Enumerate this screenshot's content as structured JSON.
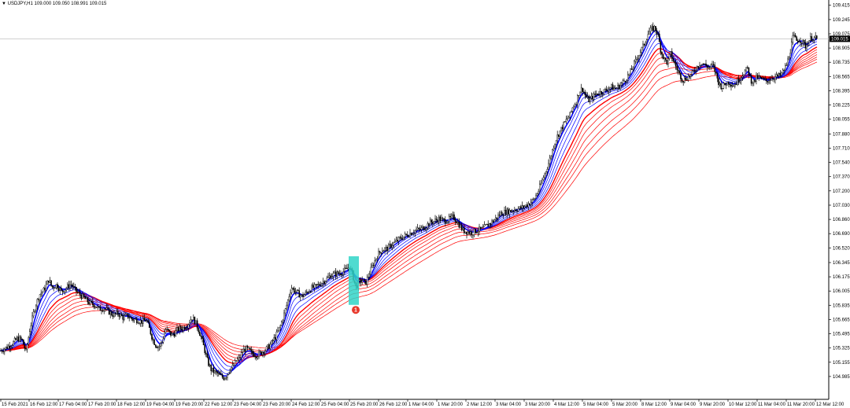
{
  "chart_data": {
    "type": "candlestick",
    "symbol_header": {
      "symbol": "USDJPY,H1",
      "ohlc": "109.000 109.050 108.991 109.015"
    },
    "current_price_label": "109.015",
    "current_price": 109.015,
    "ylim": [
      104.9,
      109.45
    ],
    "y_ticks": [
      "109.415",
      "109.245",
      "109.075",
      "108.905",
      "108.735",
      "108.565",
      "108.395",
      "108.225",
      "108.055",
      "107.880",
      "107.710",
      "107.540",
      "107.370",
      "107.200",
      "107.030",
      "106.860",
      "106.690",
      "106.520",
      "106.345",
      "106.175",
      "106.005",
      "105.835",
      "105.665",
      "105.495",
      "105.325",
      "105.155",
      "104.985"
    ],
    "x_ticks": [
      "15 Feb 2021",
      "16 Feb 12:00",
      "17 Feb 04:00",
      "17 Feb 20:00",
      "18 Feb 12:00",
      "19 Feb 04:00",
      "19 Feb 20:00",
      "22 Feb 12:00",
      "23 Feb 04:00",
      "23 Feb 20:00",
      "24 Feb 12:00",
      "25 Feb 04:00",
      "25 Feb 20:00",
      "26 Feb 12:00",
      "1 Mar 04:00",
      "1 Mar 20:00",
      "2 Mar 12:00",
      "3 Mar 04:00",
      "3 Mar 20:00",
      "4 Mar 12:00",
      "5 Mar 04:00",
      "5 Mar 20:00",
      "8 Mar 12:00",
      "9 Mar 04:00",
      "9 Mar 20:00",
      "10 Mar 12:00",
      "11 Mar 04:00",
      "11 Mar 20:00",
      "12 Mar 12:00"
    ],
    "price_path": [
      [
        0,
        105.29
      ],
      [
        8,
        105.33
      ],
      [
        16,
        105.38
      ],
      [
        22,
        105.44
      ],
      [
        28,
        105.42
      ],
      [
        33,
        105.28
      ],
      [
        38,
        105.55
      ],
      [
        44,
        105.8
      ],
      [
        50,
        105.96
      ],
      [
        56,
        106.02
      ],
      [
        62,
        106.14
      ],
      [
        66,
        106.05
      ],
      [
        72,
        106.08
      ],
      [
        78,
        106.0
      ],
      [
        84,
        106.04
      ],
      [
        90,
        106.09
      ],
      [
        96,
        106.01
      ],
      [
        102,
        105.96
      ],
      [
        108,
        105.91
      ],
      [
        114,
        105.86
      ],
      [
        120,
        105.84
      ],
      [
        126,
        105.79
      ],
      [
        132,
        105.8
      ],
      [
        138,
        105.76
      ],
      [
        144,
        105.72
      ],
      [
        150,
        105.74
      ],
      [
        156,
        105.69
      ],
      [
        162,
        105.71
      ],
      [
        168,
        105.67
      ],
      [
        174,
        105.66
      ],
      [
        180,
        105.64
      ],
      [
        186,
        105.66
      ],
      [
        190,
        105.55
      ],
      [
        194,
        105.43
      ],
      [
        198,
        105.36
      ],
      [
        202,
        105.34
      ],
      [
        206,
        105.4
      ],
      [
        210,
        105.55
      ],
      [
        214,
        105.52
      ],
      [
        218,
        105.48
      ],
      [
        222,
        105.5
      ],
      [
        226,
        105.55
      ],
      [
        232,
        105.56
      ],
      [
        238,
        105.6
      ],
      [
        244,
        105.69
      ],
      [
        248,
        105.64
      ],
      [
        252,
        105.55
      ],
      [
        256,
        105.44
      ],
      [
        260,
        105.3
      ],
      [
        264,
        105.16
      ],
      [
        268,
        105.07
      ],
      [
        272,
        105.04
      ],
      [
        276,
        105.02
      ],
      [
        280,
        104.99
      ],
      [
        284,
        104.97
      ],
      [
        288,
        105.0
      ],
      [
        292,
        105.08
      ],
      [
        296,
        105.1
      ],
      [
        300,
        105.17
      ],
      [
        304,
        105.2
      ],
      [
        308,
        105.28
      ],
      [
        312,
        105.32
      ],
      [
        316,
        105.3
      ],
      [
        320,
        105.26
      ],
      [
        326,
        105.24
      ],
      [
        332,
        105.27
      ],
      [
        338,
        105.31
      ],
      [
        344,
        105.37
      ],
      [
        350,
        105.46
      ],
      [
        356,
        105.58
      ],
      [
        362,
        105.76
      ],
      [
        366,
        105.9
      ],
      [
        370,
        106.05
      ],
      [
        374,
        106.01
      ],
      [
        378,
        105.98
      ],
      [
        384,
        105.94
      ],
      [
        390,
        105.99
      ],
      [
        396,
        106.04
      ],
      [
        402,
        106.06
      ],
      [
        408,
        106.1
      ],
      [
        414,
        106.14
      ],
      [
        420,
        106.19
      ],
      [
        426,
        106.21
      ],
      [
        432,
        106.22
      ],
      [
        436,
        106.24
      ],
      [
        440,
        106.26
      ],
      [
        444,
        106.3
      ],
      [
        448,
        106.2
      ],
      [
        452,
        106.05
      ],
      [
        456,
        106.1
      ],
      [
        460,
        106.14
      ],
      [
        464,
        106.09
      ],
      [
        468,
        106.18
      ],
      [
        474,
        106.32
      ],
      [
        480,
        106.44
      ],
      [
        486,
        106.5
      ],
      [
        492,
        106.51
      ],
      [
        498,
        106.56
      ],
      [
        504,
        106.6
      ],
      [
        510,
        106.64
      ],
      [
        516,
        106.67
      ],
      [
        522,
        106.7
      ],
      [
        528,
        106.73
      ],
      [
        534,
        106.74
      ],
      [
        540,
        106.77
      ],
      [
        546,
        106.82
      ],
      [
        552,
        106.84
      ],
      [
        558,
        106.87
      ],
      [
        564,
        106.84
      ],
      [
        570,
        106.86
      ],
      [
        576,
        106.89
      ],
      [
        582,
        106.82
      ],
      [
        588,
        106.73
      ],
      [
        594,
        106.71
      ],
      [
        600,
        106.7
      ],
      [
        606,
        106.73
      ],
      [
        612,
        106.74
      ],
      [
        618,
        106.78
      ],
      [
        624,
        106.82
      ],
      [
        630,
        106.87
      ],
      [
        636,
        106.93
      ],
      [
        642,
        106.95
      ],
      [
        648,
        106.96
      ],
      [
        654,
        106.98
      ],
      [
        660,
        106.99
      ],
      [
        666,
        107.01
      ],
      [
        672,
        107.05
      ],
      [
        678,
        107.09
      ],
      [
        684,
        107.2
      ],
      [
        690,
        107.35
      ],
      [
        696,
        107.5
      ],
      [
        700,
        107.62
      ],
      [
        704,
        107.76
      ],
      [
        708,
        107.85
      ],
      [
        712,
        107.92
      ],
      [
        716,
        107.99
      ],
      [
        720,
        108.05
      ],
      [
        724,
        108.1
      ],
      [
        728,
        108.21
      ],
      [
        732,
        108.26
      ],
      [
        736,
        108.39
      ],
      [
        740,
        108.42
      ],
      [
        744,
        108.33
      ],
      [
        748,
        108.28
      ],
      [
        752,
        108.31
      ],
      [
        758,
        108.36
      ],
      [
        764,
        108.38
      ],
      [
        770,
        108.4
      ],
      [
        776,
        108.44
      ],
      [
        782,
        108.42
      ],
      [
        788,
        108.46
      ],
      [
        794,
        108.52
      ],
      [
        800,
        108.6
      ],
      [
        806,
        108.72
      ],
      [
        812,
        108.83
      ],
      [
        818,
        108.94
      ],
      [
        824,
        109.09
      ],
      [
        828,
        109.13
      ],
      [
        832,
        109.15
      ],
      [
        836,
        109.06
      ],
      [
        840,
        108.86
      ],
      [
        844,
        108.77
      ],
      [
        848,
        108.73
      ],
      [
        852,
        108.84
      ],
      [
        856,
        108.74
      ],
      [
        860,
        108.66
      ],
      [
        864,
        108.58
      ],
      [
        868,
        108.52
      ],
      [
        872,
        108.55
      ],
      [
        878,
        108.58
      ],
      [
        884,
        108.66
      ],
      [
        890,
        108.73
      ],
      [
        896,
        108.7
      ],
      [
        902,
        108.67
      ],
      [
        906,
        108.7
      ],
      [
        910,
        108.58
      ],
      [
        914,
        108.47
      ],
      [
        918,
        108.44
      ],
      [
        922,
        108.48
      ],
      [
        926,
        108.5
      ],
      [
        932,
        108.46
      ],
      [
        938,
        108.52
      ],
      [
        944,
        108.6
      ],
      [
        950,
        108.66
      ],
      [
        954,
        108.52
      ],
      [
        958,
        108.5
      ],
      [
        962,
        108.56
      ],
      [
        968,
        108.53
      ],
      [
        974,
        108.51
      ],
      [
        980,
        108.55
      ],
      [
        986,
        108.56
      ],
      [
        992,
        108.58
      ],
      [
        996,
        108.64
      ],
      [
        1000,
        108.72
      ],
      [
        1004,
        108.87
      ],
      [
        1008,
        109.05
      ],
      [
        1012,
        108.99
      ],
      [
        1016,
        109.01
      ],
      [
        1020,
        108.97
      ],
      [
        1024,
        108.92
      ],
      [
        1028,
        109.0
      ],
      [
        1032,
        109.03
      ],
      [
        1036,
        109.02
      ],
      [
        1038,
        109.015
      ]
    ],
    "ema_fast_offsets": [
      0,
      0.04,
      0.08,
      0.12
    ],
    "ema_slow_offsets": [
      0.16,
      0.2,
      0.24,
      0.28,
      0.32,
      0.36,
      0.4
    ],
    "colors": {
      "candles": "#000000",
      "fast_ma": "#0000ff",
      "slow_ma": "#ff0000",
      "highlight": "#30d5c8",
      "badge": "#e8382b",
      "price_line": "#c0c0c0",
      "price_label_bg": "#000000",
      "axis": "#000000"
    },
    "annotations": [
      {
        "type": "highlight",
        "x_at": "25 Feb 20:00",
        "price_from": 105.84,
        "price_to": 106.42
      },
      {
        "type": "badge",
        "text": "1",
        "price": 105.78
      }
    ]
  }
}
